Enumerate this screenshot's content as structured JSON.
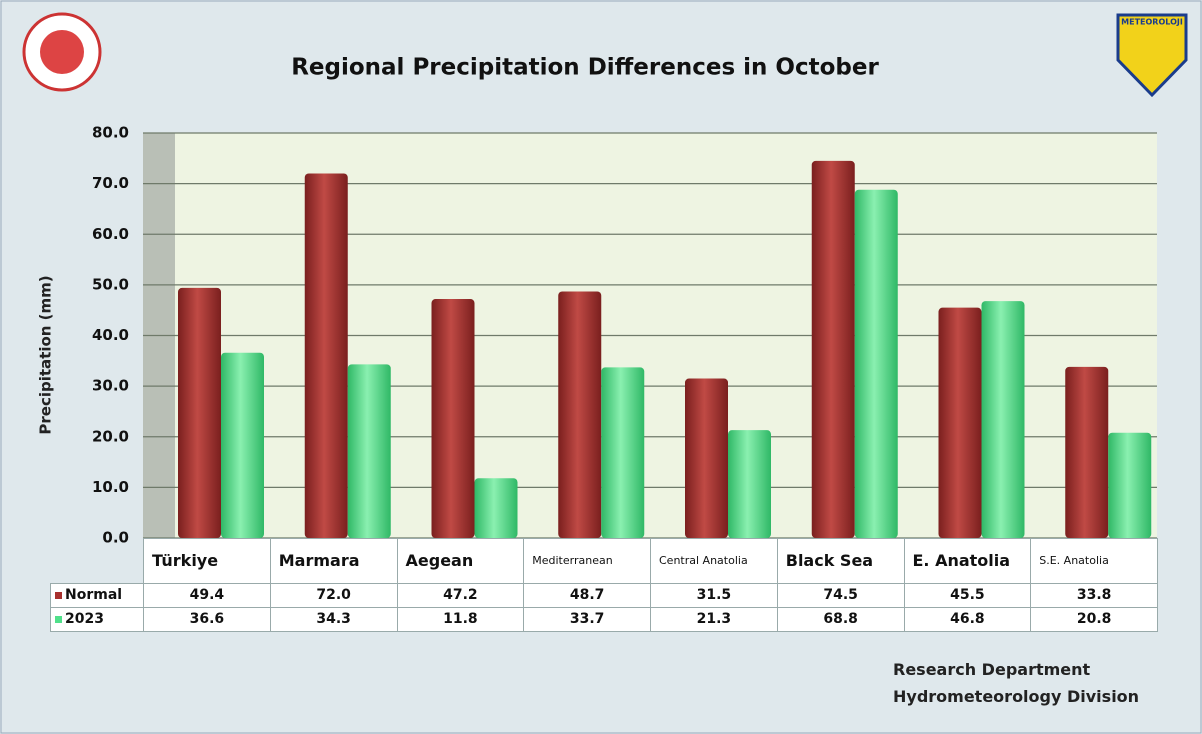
{
  "chart_data": {
    "type": "bar",
    "title": "Regional Precipitation Differences in October",
    "y_label": "Precipitation (mm)",
    "logo_text": "METEOROLOJI",
    "categories": [
      "Türkiye",
      "Marmara",
      "Aegean",
      "Mediterranean",
      "Central Anatolia",
      "Black Sea",
      "E. Anatolia",
      "S.E. Anatolia"
    ],
    "series": [
      {
        "name": "Normal",
        "color": "#a8302e",
        "values": [
          49.4,
          72.0,
          47.2,
          48.7,
          31.5,
          74.5,
          45.5,
          33.8
        ],
        "value_labels": [
          "49.4",
          "72.0",
          "47.2",
          "48.7",
          "31.5",
          "74.5",
          "45.5",
          "33.8"
        ]
      },
      {
        "name": "2023",
        "color": "#4fe08a",
        "values": [
          36.6,
          34.3,
          11.8,
          33.7,
          21.3,
          68.8,
          46.8,
          20.8
        ],
        "value_labels": [
          "36.6",
          "34.3",
          "11.8",
          "33.7",
          "21.3",
          "68.8",
          "46.8",
          "20.8"
        ]
      }
    ],
    "ylim": [
      0,
      80
    ],
    "yticks": [
      {
        "value": 0,
        "label": "0.0"
      },
      {
        "value": 10,
        "label": "10.0"
      },
      {
        "value": 20,
        "label": "20.0"
      },
      {
        "value": 30,
        "label": "30.0"
      },
      {
        "value": 40,
        "label": "40.0"
      },
      {
        "value": 50,
        "label": "50.0"
      },
      {
        "value": 60,
        "label": "60.0"
      },
      {
        "value": 70,
        "label": "70.0"
      },
      {
        "value": 80,
        "label": "80.0"
      }
    ],
    "grid": true,
    "footer": [
      "Research Department",
      "Hydrometeorology Division"
    ]
  }
}
